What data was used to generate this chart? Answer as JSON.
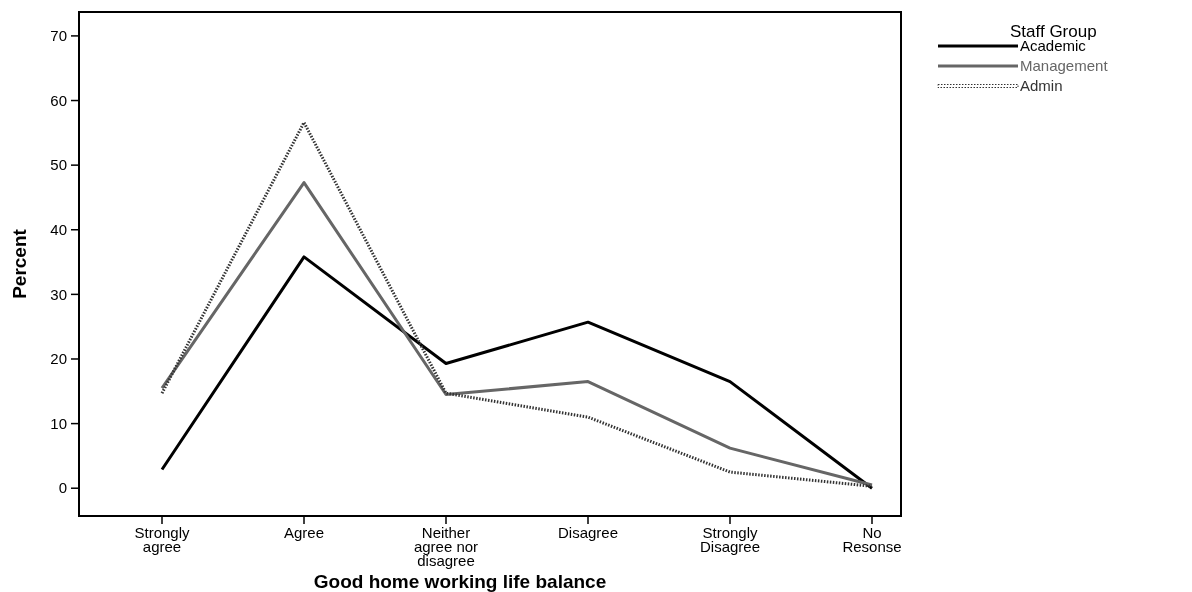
{
  "chart_data": {
    "type": "line",
    "xlabel": "Good home working life balance",
    "ylabel": "Percent",
    "legend_title": "Staff Group",
    "legend": "top right",
    "categories": [
      "Strongly agree",
      "Agree",
      "Neither agree nor disagree",
      "Disagree",
      "Strongly Disagree",
      "No Resonse"
    ],
    "ylim": [
      -4.3,
      73.7
    ],
    "yticks": [
      0,
      10,
      20,
      30,
      40,
      50,
      60,
      70
    ],
    "grid": false,
    "marker": "none",
    "series": [
      {
        "name": "Academic",
        "color": "#000000",
        "line_style": "solid",
        "values": [
          2.9,
          35.8,
          19.3,
          25.7,
          16.5,
          0
        ]
      },
      {
        "name": "Management",
        "color": "#666666",
        "line_style": "solid",
        "values": [
          15.5,
          47.3,
          14.5,
          16.5,
          6.2,
          0.5
        ]
      },
      {
        "name": "Admin",
        "color": "#333333",
        "line_style": "dotted",
        "values": [
          14.7,
          56.6,
          14.7,
          11,
          2.5,
          0.3
        ]
      }
    ]
  }
}
